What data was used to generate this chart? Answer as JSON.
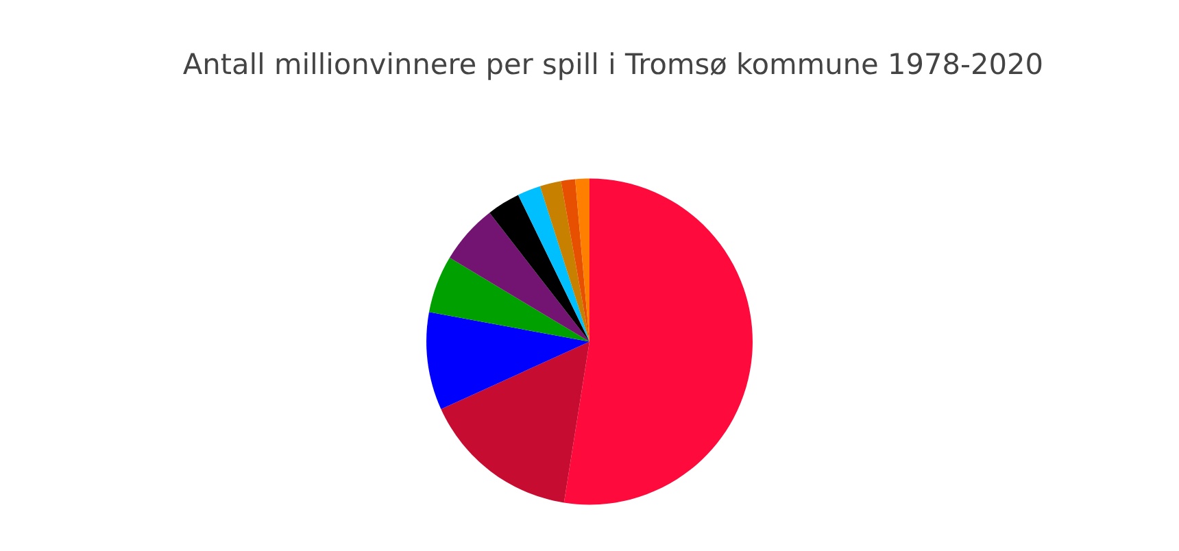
{
  "chart_data": {
    "type": "pie",
    "title": "Antall millionvinnere per spill i Tromsø kommune 1978-2020",
    "categories": [
      null,
      null,
      null,
      null,
      null,
      null,
      null,
      null,
      null,
      null
    ],
    "values": [
      52.5,
      15.7,
      9.7,
      5.7,
      5.9,
      3.3,
      2.3,
      2.1,
      1.4,
      1.4
    ],
    "colors": [
      "#ff0a3c",
      "#c60c30",
      "#0000ff",
      "#00a000",
      "#731473",
      "#000000",
      "#00bfff",
      "#c88000",
      "#e65000",
      "#ff8000"
    ]
  }
}
